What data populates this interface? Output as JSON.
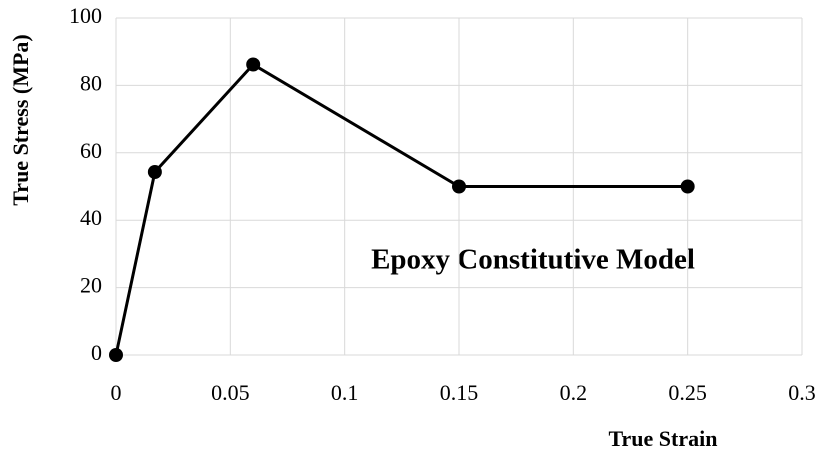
{
  "chart_data": {
    "type": "line",
    "x_label": "True Strain",
    "y_label": "True Stress (MPa)",
    "annotation": "Epoxy Constitutive Model",
    "x": [
      0,
      0.017,
      0.06,
      0.15,
      0.25
    ],
    "values": [
      0,
      54.3,
      86.2,
      50,
      50
    ],
    "color": "#000000",
    "markers": true,
    "xlim": [
      0,
      0.3
    ],
    "xticks": [
      0,
      0.05,
      0.1,
      0.15,
      0.2,
      0.25,
      0.3
    ],
    "ylim": [
      0,
      100
    ],
    "yticks": [
      0,
      20,
      40,
      60,
      80,
      100
    ],
    "grid": true
  }
}
